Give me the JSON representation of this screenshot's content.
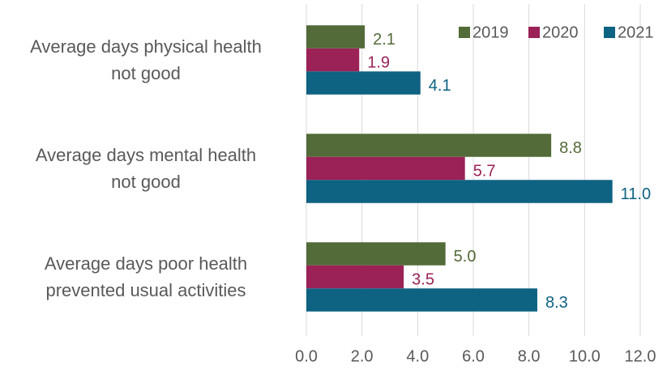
{
  "chart_data": {
    "type": "bar",
    "orientation": "horizontal",
    "categories": [
      "Average days physical health\nnot good",
      "Average days mental health\nnot good",
      "Average days poor health\nprevented usual activities"
    ],
    "series": [
      {
        "name": "2019",
        "color": "#536b38",
        "values": [
          2.1,
          8.8,
          5.0
        ],
        "value_labels": [
          "2.1",
          "8.8",
          "5.0"
        ]
      },
      {
        "name": "2020",
        "color": "#9b2257",
        "values": [
          1.9,
          5.7,
          3.5
        ],
        "value_labels": [
          "1.9",
          "5.7",
          "3.5"
        ]
      },
      {
        "name": "2021",
        "color": "#0e6282",
        "values": [
          4.1,
          11.0,
          8.3
        ],
        "value_labels": [
          "4.1",
          "11.0",
          "8.3"
        ]
      }
    ],
    "xlim": [
      0,
      12
    ],
    "xticks": [
      {
        "value": 0,
        "label": "0.0"
      },
      {
        "value": 2,
        "label": "2.0"
      },
      {
        "value": 4,
        "label": "4.0"
      },
      {
        "value": 6,
        "label": "6.0"
      },
      {
        "value": 8,
        "label": "8.0"
      },
      {
        "value": 10,
        "label": "10.0"
      },
      {
        "value": 12,
        "label": "12.0"
      }
    ],
    "grid": true,
    "legend": "top-right"
  }
}
